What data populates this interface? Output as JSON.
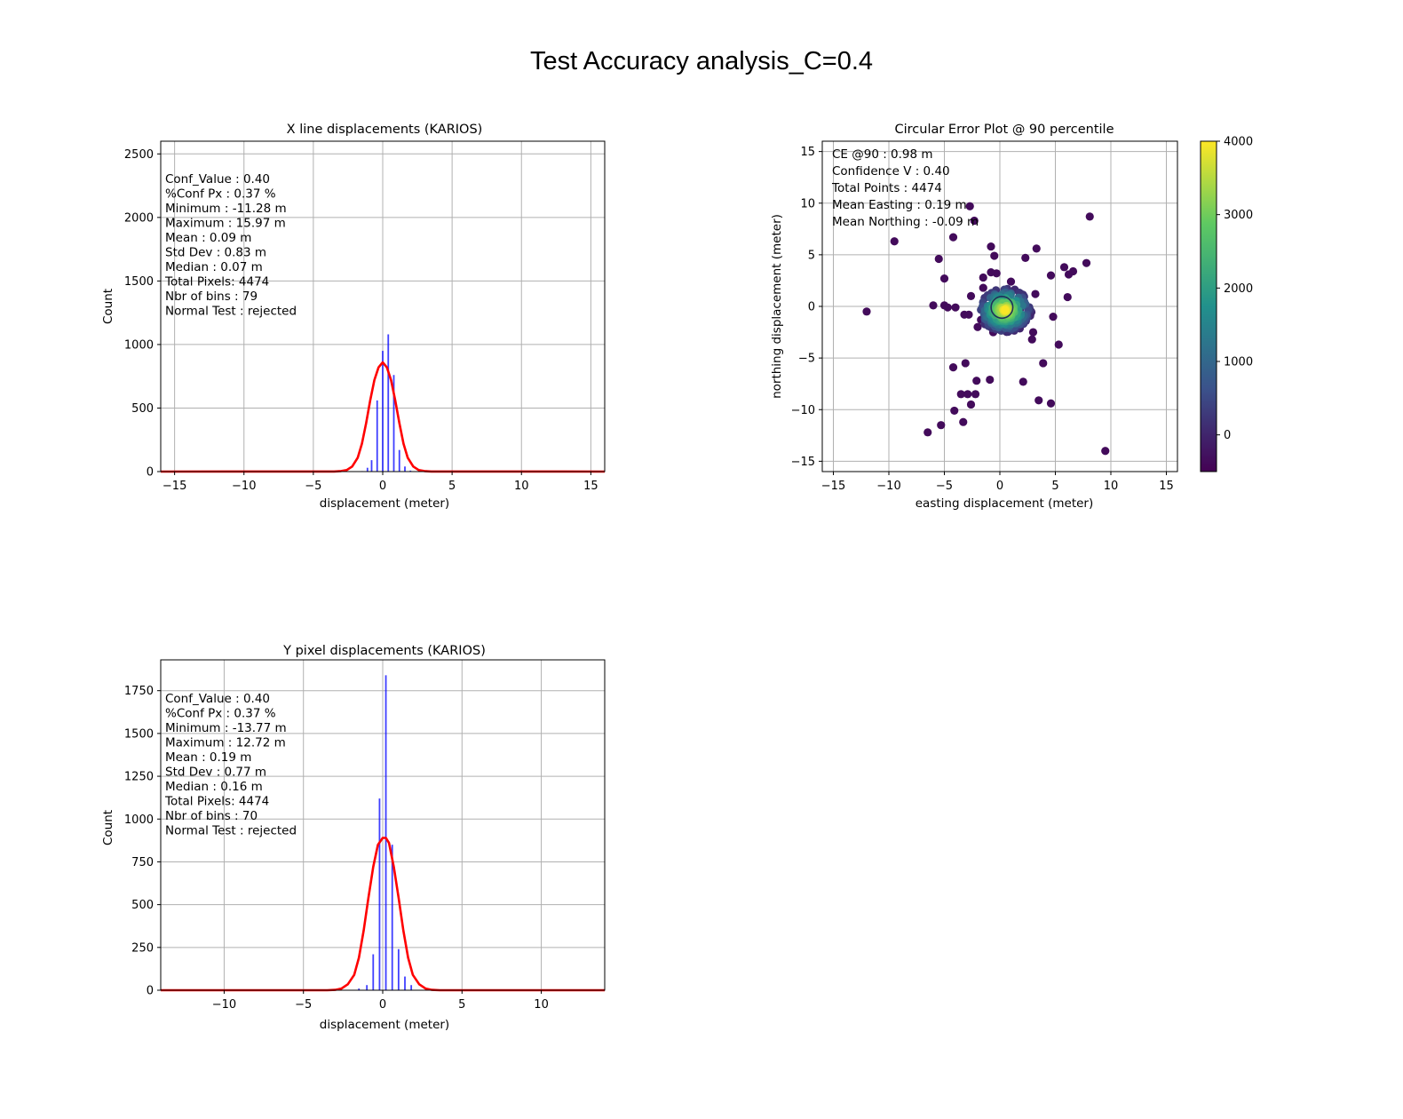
{
  "figure": {
    "title": "Test Accuracy analysis_C=0.4"
  },
  "colors": {
    "bar": "#0000ff",
    "fit": "#ff0000",
    "grid": "#b0b0b0",
    "circle": "#1f2f5a"
  },
  "chart_data": [
    {
      "id": "x_hist",
      "type": "bar",
      "title": "X line displacements (KARIOS)",
      "xlabel": "displacement (meter)",
      "ylabel": "Count",
      "xlim": [
        -16,
        16
      ],
      "ylim": [
        0,
        2600
      ],
      "xticks": [
        -15,
        -10,
        -5,
        0,
        5,
        10,
        15
      ],
      "xtick_labels": [
        "−15",
        "−10",
        "−5",
        "0",
        "5",
        "10",
        "15"
      ],
      "yticks": [
        0,
        500,
        1000,
        1500,
        2000,
        2500
      ],
      "ytick_labels": [
        "0",
        "500",
        "1000",
        "1500",
        "2000",
        "2500"
      ],
      "grid": true,
      "stats": [
        "Conf_Value : 0.40",
        " %Conf Px   : 0.37 %",
        "Minimum    :  -11.28 m",
        "Maximum   :  15.97 m",
        "Mean         :  0.09 m",
        "Std Dev      :  0.83 m",
        "Median       :  0.07 m",
        "Total Pixels: 4474",
        "Nbr of bins : 79",
        "Normal Test : rejected"
      ],
      "bars": {
        "x": [
          -1.5,
          -1.1,
          -0.8,
          -0.4,
          0.0,
          0.4,
          0.8,
          1.2,
          1.6,
          2.0
        ],
        "values": [
          4,
          30,
          90,
          560,
          950,
          1080,
          760,
          170,
          40,
          8
        ]
      },
      "fit_curve": {
        "x": [
          -16,
          -3.5,
          -3.0,
          -2.6,
          -2.2,
          -1.8,
          -1.5,
          -1.2,
          -0.9,
          -0.6,
          -0.3,
          0.0,
          0.3,
          0.6,
          0.9,
          1.2,
          1.5,
          1.8,
          2.2,
          2.6,
          3.0,
          3.5,
          16
        ],
        "y": [
          0,
          1,
          4,
          12,
          40,
          110,
          220,
          380,
          560,
          720,
          820,
          860,
          820,
          720,
          560,
          380,
          220,
          110,
          40,
          12,
          4,
          1,
          0
        ]
      }
    },
    {
      "id": "ce_scatter",
      "type": "scatter",
      "title": "Circular Error Plot @ 90 percentile",
      "xlabel": "easting displacement (meter)",
      "ylabel": "northing displacement (meter)",
      "xlim": [
        -16,
        16
      ],
      "ylim": [
        -16,
        16
      ],
      "xticks": [
        -15,
        -10,
        -5,
        0,
        5,
        10,
        15
      ],
      "xtick_labels": [
        "−15",
        "−10",
        "−5",
        "0",
        "5",
        "10",
        "15"
      ],
      "yticks": [
        -15,
        -10,
        -5,
        0,
        5,
        10,
        15
      ],
      "ytick_labels": [
        "−15",
        "−10",
        "−5",
        "0",
        "5",
        "10",
        "15"
      ],
      "grid": true,
      "stats": [
        "CE @90       : 0.98  m",
        "Confidence V  : 0.40",
        "Total Points  : 4474",
        "Mean Easting  : 0.19  m",
        "Mean Northing  : -0.09 m"
      ],
      "ce90_radius": 0.98,
      "colorbar": {
        "range": [
          -500,
          4000
        ],
        "ticks": [
          0,
          1000,
          2000,
          3000,
          4000
        ],
        "tick_labels": [
          "0",
          "1000",
          "2000",
          "3000",
          "4000"
        ],
        "colormap": "viridis"
      },
      "outliers": [
        [
          -12.0,
          -0.5
        ],
        [
          -9.5,
          6.3
        ],
        [
          -6.5,
          -12.2
        ],
        [
          -6.0,
          0.1
        ],
        [
          -5.5,
          4.6
        ],
        [
          -5.3,
          -11.5
        ],
        [
          -5.0,
          2.7
        ],
        [
          -5.0,
          0.1
        ],
        [
          -4.7,
          -0.1
        ],
        [
          -4.2,
          6.7
        ],
        [
          -4.2,
          -5.9
        ],
        [
          -4.1,
          -10.1
        ],
        [
          -4.0,
          -0.1
        ],
        [
          -3.5,
          -8.5
        ],
        [
          -3.3,
          -11.2
        ],
        [
          -3.2,
          -0.8
        ],
        [
          -3.1,
          -5.5
        ],
        [
          -2.9,
          -8.5
        ],
        [
          -2.7,
          9.7
        ],
        [
          -2.6,
          1.0
        ],
        [
          -2.6,
          -9.5
        ],
        [
          -2.3,
          8.3
        ],
        [
          -2.2,
          -8.5
        ],
        [
          -2.1,
          -7.2
        ],
        [
          -2.0,
          -2.0
        ],
        [
          -1.5,
          2.8
        ],
        [
          -1.5,
          1.8
        ],
        [
          -0.9,
          -7.1
        ],
        [
          -0.8,
          5.8
        ],
        [
          -0.5,
          4.9
        ],
        [
          -0.3,
          3.2
        ],
        [
          -0.8,
          3.3
        ],
        [
          -0.6,
          -2.5
        ],
        [
          1.0,
          2.4
        ],
        [
          2.1,
          -7.3
        ],
        [
          2.3,
          4.7
        ],
        [
          2.9,
          -3.2
        ],
        [
          3.0,
          -2.5
        ],
        [
          3.2,
          1.2
        ],
        [
          3.3,
          5.6
        ],
        [
          3.5,
          -9.1
        ],
        [
          3.9,
          -5.5
        ],
        [
          4.6,
          -9.4
        ],
        [
          4.6,
          3.0
        ],
        [
          4.8,
          -1.0
        ],
        [
          5.3,
          -3.7
        ],
        [
          5.8,
          3.8
        ],
        [
          6.1,
          0.9
        ],
        [
          6.2,
          3.1
        ],
        [
          6.6,
          3.4
        ],
        [
          7.8,
          4.2
        ],
        [
          8.1,
          8.7
        ],
        [
          9.5,
          -14.0
        ],
        [
          -2.8,
          -0.8
        ],
        [
          1.8,
          -0.3
        ],
        [
          -1.7,
          -1.3
        ]
      ]
    },
    {
      "id": "y_hist",
      "type": "bar",
      "title": "Y pixel displacements (KARIOS)",
      "xlabel": "displacement (meter)",
      "ylabel": "Count",
      "xlim": [
        -14,
        14
      ],
      "ylim": [
        0,
        1930
      ],
      "xticks": [
        -10,
        -5,
        0,
        5,
        10
      ],
      "xtick_labels": [
        "−10",
        "−5",
        "0",
        "5",
        "10"
      ],
      "yticks": [
        0,
        250,
        500,
        750,
        1000,
        1250,
        1500,
        1750
      ],
      "ytick_labels": [
        "0",
        "250",
        "500",
        "750",
        "1000",
        "1250",
        "1500",
        "1750"
      ],
      "grid": true,
      "stats": [
        "Conf_Value : 0.40",
        " %Conf Px   : 0.37 %",
        "Minimum    :  -13.77 m",
        "Maximum   :  12.72 m",
        "Mean         :  0.19 m",
        "Std Dev      :  0.77 m",
        "Median       :  0.16 m",
        "Total Pixels: 4474",
        "Nbr of bins : 70",
        "Normal Test : rejected"
      ],
      "bars": {
        "x": [
          -1.5,
          -1.0,
          -0.6,
          -0.2,
          0.2,
          0.6,
          1.0,
          1.4,
          1.8
        ],
        "values": [
          10,
          30,
          210,
          1120,
          1840,
          850,
          240,
          80,
          30
        ]
      },
      "fit_curve": {
        "x": [
          -14,
          -3.5,
          -3.0,
          -2.6,
          -2.2,
          -1.8,
          -1.5,
          -1.2,
          -0.9,
          -0.6,
          -0.3,
          0.0,
          0.2,
          0.4,
          0.7,
          1.0,
          1.3,
          1.6,
          1.9,
          2.3,
          2.7,
          3.1,
          3.6,
          14
        ],
        "y": [
          0,
          0,
          2,
          10,
          35,
          90,
          190,
          350,
          540,
          720,
          850,
          890,
          890,
          860,
          720,
          540,
          350,
          190,
          90,
          35,
          10,
          2,
          0,
          0
        ]
      }
    }
  ]
}
